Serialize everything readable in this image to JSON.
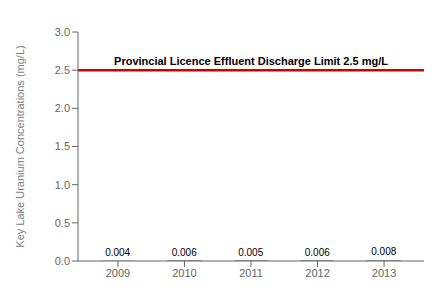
{
  "chart_data": {
    "type": "bar",
    "x": [
      2009,
      2010,
      2011,
      2012,
      2013
    ],
    "values": [
      0.004,
      0.006,
      0.005,
      0.006,
      0.008
    ],
    "color": "#3a3a3a",
    "xlim": [
      2008.4,
      2013.6
    ],
    "xticks": [
      2009,
      2010,
      2011,
      2012,
      2013
    ],
    "ylim": [
      0,
      3.0
    ],
    "yticks": [
      {
        "value": 0,
        "label": "0.0"
      },
      0.5,
      {
        "value": 1,
        "label": "1.0"
      },
      1.5,
      {
        "value": 2,
        "label": "2.0"
      },
      2.5,
      {
        "value": 3,
        "label": "3.0"
      }
    ],
    "ylabel": "Key Lake Uranium Concentrations (mg/L)",
    "data_labels": true,
    "grid": false,
    "limit": {
      "y": 2.5,
      "label": "Provincial Licence Effluent Discharge Limit 2.5 mg/L",
      "color": "#cc0000"
    }
  }
}
